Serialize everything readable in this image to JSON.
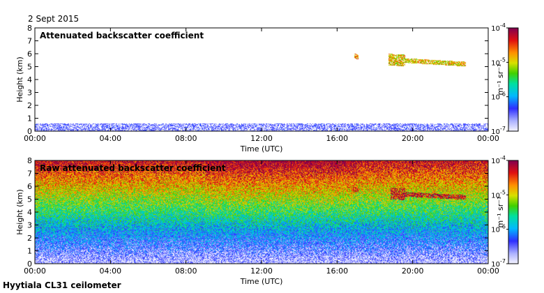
{
  "header": {
    "date": "2 Sept 2015"
  },
  "footer": {
    "instrument": "Hyytiala CL31 ceilometer"
  },
  "chart_data": [
    {
      "type": "heatmap",
      "title": "Attenuated backscatter coefficient",
      "xlabel": "Time (UTC)",
      "ylabel": "Height (km)",
      "x_ticks": [
        "00:00",
        "04:00",
        "08:00",
        "12:00",
        "16:00",
        "20:00",
        "00:00"
      ],
      "y_ticks": [
        "0",
        "1",
        "2",
        "3",
        "4",
        "5",
        "6",
        "7",
        "8"
      ],
      "xlim_hours": [
        0,
        24
      ],
      "ylim_km": [
        0,
        8
      ],
      "colorbar": {
        "scale": "log",
        "range": [
          1e-07,
          0.0001
        ],
        "ticks": [
          {
            "base": "10",
            "exp": "-4"
          },
          {
            "base": "10",
            "exp": "-5"
          },
          {
            "base": "10",
            "exp": "-6"
          },
          {
            "base": "10",
            "exp": "-7"
          }
        ],
        "unit": "m⁻¹ sr⁻¹"
      },
      "features": [
        {
          "kind": "boundary-layer",
          "t_start_h": 0,
          "t_end_h": 24,
          "h_min_km": 0,
          "h_max_km": 0.6,
          "level": 0.12
        },
        {
          "kind": "cloud",
          "t_start_h": 16.9,
          "t_end_h": 17.1,
          "h_min_km": 5.6,
          "h_max_km": 6.1,
          "level": 0.75
        },
        {
          "kind": "cloud",
          "t_start_h": 18.7,
          "t_end_h": 22.8,
          "h_min_km": 4.8,
          "h_max_km": 6.2,
          "level": 0.7
        }
      ]
    },
    {
      "type": "heatmap",
      "title": "Raw attenuated backscatter coefficient",
      "xlabel": "Time (UTC)",
      "ylabel": "Height (km)",
      "x_ticks": [
        "00:00",
        "04:00",
        "08:00",
        "12:00",
        "16:00",
        "20:00",
        "00:00"
      ],
      "y_ticks": [
        "0",
        "1",
        "2",
        "3",
        "4",
        "5",
        "6",
        "7",
        "8"
      ],
      "xlim_hours": [
        0,
        24
      ],
      "ylim_km": [
        0,
        8
      ],
      "colorbar": {
        "scale": "log",
        "range": [
          1e-07,
          0.0001
        ],
        "ticks": [
          {
            "base": "10",
            "exp": "-4"
          },
          {
            "base": "10",
            "exp": "-5"
          },
          {
            "base": "10",
            "exp": "-6"
          },
          {
            "base": "10",
            "exp": "-7"
          }
        ],
        "unit": "m⁻¹ sr⁻¹"
      },
      "features": [
        {
          "kind": "noise-gradient",
          "t_start_h": 0,
          "t_end_h": 24,
          "h_min_km": 0,
          "h_max_km": 8
        },
        {
          "kind": "cloud",
          "t_start_h": 16.8,
          "t_end_h": 17.1,
          "h_min_km": 5.6,
          "h_max_km": 6.0,
          "level": 0.9
        },
        {
          "kind": "cloud",
          "t_start_h": 18.8,
          "t_end_h": 22.8,
          "h_min_km": 4.8,
          "h_max_km": 6.0,
          "level": 0.92
        }
      ]
    }
  ]
}
